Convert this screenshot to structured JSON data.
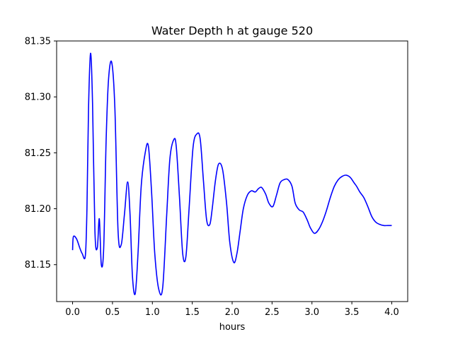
{
  "chart_data": {
    "type": "line",
    "title": "Water Depth h at gauge 520",
    "xlabel": "hours",
    "ylabel": "",
    "xlim": [
      -0.2,
      4.2
    ],
    "ylim": [
      81.117,
      81.35
    ],
    "xticks": [
      0.0,
      0.5,
      1.0,
      1.5,
      2.0,
      2.5,
      3.0,
      3.5,
      4.0
    ],
    "xtick_labels": [
      "0.0",
      "0.5",
      "1.0",
      "1.5",
      "2.0",
      "2.5",
      "3.0",
      "3.5",
      "4.0"
    ],
    "yticks": [
      81.15,
      81.2,
      81.25,
      81.3,
      81.35
    ],
    "ytick_labels": [
      "81.15",
      "81.20",
      "81.25",
      "81.30",
      "81.35"
    ],
    "grid": false,
    "series": [
      {
        "name": "",
        "color": "#0000ff",
        "x": [
          0.0,
          0.01,
          0.05,
          0.09,
          0.12,
          0.16,
          0.18,
          0.2,
          0.225,
          0.25,
          0.28,
          0.31,
          0.335,
          0.36,
          0.39,
          0.42,
          0.45,
          0.49,
          0.53,
          0.57,
          0.61,
          0.65,
          0.69,
          0.72,
          0.75,
          0.785,
          0.82,
          0.86,
          0.91,
          0.95,
          0.99,
          1.03,
          1.08,
          1.13,
          1.18,
          1.22,
          1.27,
          1.3,
          1.34,
          1.38,
          1.42,
          1.46,
          1.51,
          1.56,
          1.6,
          1.64,
          1.68,
          1.72,
          1.75,
          1.79,
          1.83,
          1.88,
          1.93,
          1.97,
          2.02,
          2.06,
          2.1,
          2.14,
          2.19,
          2.24,
          2.29,
          2.33,
          2.37,
          2.42,
          2.46,
          2.51,
          2.555,
          2.6,
          2.65,
          2.7,
          2.75,
          2.79,
          2.84,
          2.89,
          2.94,
          2.98,
          3.03,
          3.08,
          3.13,
          3.18,
          3.23,
          3.28,
          3.33,
          3.38,
          3.43,
          3.48,
          3.53,
          3.56,
          3.6,
          3.65,
          3.7,
          3.75,
          3.8,
          3.85,
          3.9,
          3.95,
          4.0
        ],
        "y": [
          81.163,
          81.175,
          81.173,
          81.165,
          81.16,
          81.158,
          81.2,
          81.29,
          81.339,
          81.295,
          81.18,
          81.165,
          81.191,
          81.15,
          81.165,
          81.26,
          81.315,
          81.331,
          81.29,
          81.18,
          81.168,
          81.195,
          81.224,
          81.195,
          81.14,
          81.124,
          81.16,
          81.22,
          81.25,
          81.256,
          81.215,
          81.16,
          81.128,
          81.13,
          81.195,
          81.245,
          81.262,
          81.255,
          81.21,
          81.16,
          81.157,
          81.2,
          81.255,
          81.267,
          81.262,
          81.225,
          81.19,
          81.186,
          81.2,
          81.225,
          81.24,
          81.235,
          81.205,
          81.17,
          81.152,
          81.16,
          81.18,
          81.2,
          81.212,
          81.216,
          81.215,
          81.218,
          81.219,
          81.213,
          81.205,
          81.202,
          81.212,
          81.223,
          81.226,
          81.226,
          81.22,
          81.205,
          81.199,
          81.197,
          81.19,
          81.183,
          81.178,
          81.181,
          81.188,
          81.198,
          81.21,
          81.22,
          81.226,
          81.229,
          81.23,
          81.228,
          81.223,
          81.22,
          81.215,
          81.21,
          81.202,
          81.193,
          81.188,
          81.186,
          81.185,
          81.185,
          81.185
        ]
      }
    ]
  }
}
